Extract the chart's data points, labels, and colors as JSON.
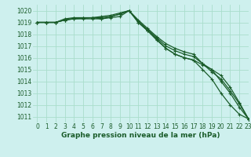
{
  "title": "Graphe pression niveau de la mer (hPa)",
  "bg_color": "#cef0ee",
  "grid_color": "#aaddcc",
  "line_color": "#1a5c2a",
  "xlim": [
    -0.5,
    23
  ],
  "ylim": [
    1010.5,
    1020.5
  ],
  "yticks": [
    1011,
    1012,
    1013,
    1014,
    1015,
    1016,
    1017,
    1018,
    1019,
    1020
  ],
  "xticks": [
    0,
    1,
    2,
    3,
    4,
    5,
    6,
    7,
    8,
    9,
    10,
    11,
    12,
    13,
    14,
    15,
    16,
    17,
    18,
    19,
    20,
    21,
    22,
    23
  ],
  "series": [
    [
      1019.0,
      1019.0,
      1019.0,
      1019.2,
      1019.3,
      1019.3,
      1019.3,
      1019.3,
      1019.5,
      1019.7,
      1020.0,
      1019.0,
      1018.3,
      1017.5,
      1016.8,
      1016.3,
      1016.0,
      1015.8,
      1015.4,
      1015.0,
      1014.0,
      1013.0,
      1011.8,
      1010.8
    ],
    [
      1019.0,
      1019.0,
      1019.0,
      1019.3,
      1019.4,
      1019.4,
      1019.4,
      1019.5,
      1019.6,
      1019.8,
      1020.0,
      1019.2,
      1018.5,
      1017.8,
      1017.2,
      1016.8,
      1016.5,
      1016.3,
      1015.5,
      1015.0,
      1014.5,
      1013.5,
      1012.2,
      1010.8
    ],
    [
      1019.0,
      1019.0,
      1019.0,
      1019.2,
      1019.35,
      1019.35,
      1019.4,
      1019.4,
      1019.5,
      1019.7,
      1020.0,
      1019.1,
      1018.4,
      1017.7,
      1017.0,
      1016.6,
      1016.3,
      1016.1,
      1015.5,
      1014.8,
      1014.2,
      1013.2,
      1012.1,
      1010.8
    ],
    [
      1019.0,
      1019.0,
      1019.0,
      1019.2,
      1019.3,
      1019.35,
      1019.4,
      1019.3,
      1019.4,
      1019.5,
      1020.0,
      1019.0,
      1018.3,
      1017.6,
      1016.8,
      1016.3,
      1016.0,
      1015.8,
      1015.0,
      1014.2,
      1013.0,
      1012.0,
      1011.2,
      1010.8
    ]
  ],
  "marker_size": 3,
  "linewidth": 0.9,
  "tick_fontsize": 5.5,
  "xlabel_fontsize": 6.5
}
